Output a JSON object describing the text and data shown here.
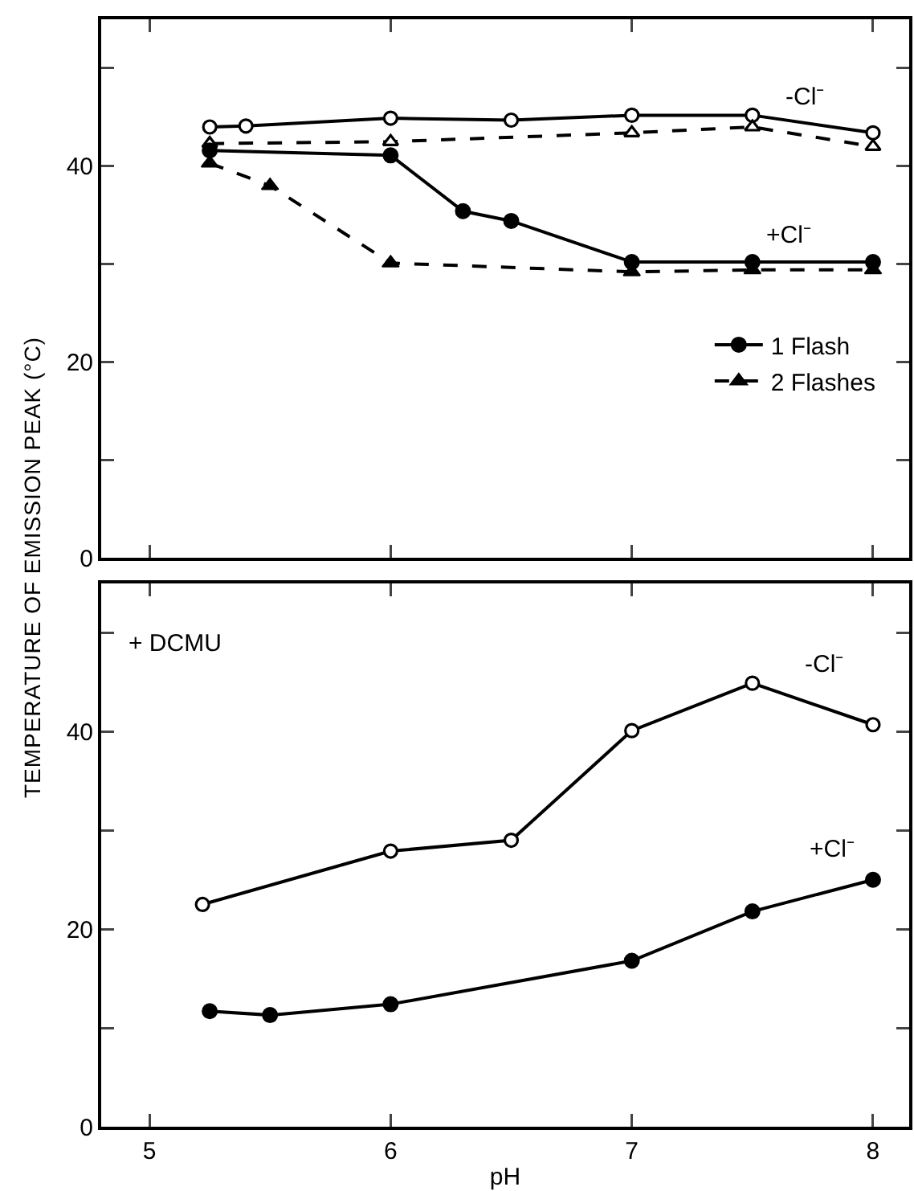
{
  "chart_data": [
    {
      "type": "line",
      "ylabel": "TEMPERATURE OF EMISSION PEAK (°C)",
      "xlim": [
        4.8,
        8.15
      ],
      "xticks": [
        5,
        6,
        7,
        8
      ],
      "ylim": [
        0,
        55
      ],
      "yticks": [
        {
          "value": 0,
          "label": "0"
        },
        {
          "value": 10,
          "label": null
        },
        {
          "value": 20,
          "label": "20"
        },
        {
          "value": 30,
          "label": null
        },
        {
          "value": 40,
          "label": "40"
        },
        {
          "value": 50,
          "label": null
        }
      ],
      "tick_labels": "y",
      "grid": false,
      "legend": "bottom right",
      "series": [
        {
          "color": "#000000",
          "marker": "circle-open",
          "line_style": "solid",
          "x": [
            5.25,
            5.4,
            6,
            6.5,
            7,
            7.5,
            8
          ],
          "values": [
            44.0,
            44.1,
            44.9,
            44.7,
            45.2,
            45.2,
            43.4
          ]
        },
        {
          "color": "#000000",
          "marker": "triangle-open",
          "line_style": "dashed",
          "x": [
            5.25,
            6,
            7,
            7.5,
            8
          ],
          "values": [
            42.3,
            42.5,
            43.4,
            44.0,
            42.0
          ]
        },
        {
          "name": "1 Flash",
          "color": "#000000",
          "marker": "circle",
          "line_style": "solid",
          "x": [
            5.25,
            6,
            6.3,
            6.5,
            7,
            7.5,
            8
          ],
          "values": [
            41.6,
            41.1,
            35.4,
            34.4,
            30.2,
            30.2,
            30.2
          ]
        },
        {
          "name": "2 Flashes",
          "color": "#000000",
          "marker": "triangle",
          "line_style": "dashed",
          "x": [
            5.25,
            5.5,
            6,
            7,
            7.5,
            8
          ],
          "values": [
            40.3,
            38.0,
            30.1,
            29.2,
            29.4,
            29.4
          ]
        }
      ],
      "annotations": [
        "-Cl⁻",
        "+Cl⁻"
      ]
    },
    {
      "type": "line",
      "xlabel": "pH",
      "xlim": [
        4.8,
        8.15
      ],
      "xticks": [
        5,
        6,
        7,
        8
      ],
      "ylim": [
        0,
        55
      ],
      "yticks": [
        {
          "value": 0,
          "label": "0"
        },
        {
          "value": 10,
          "label": null
        },
        {
          "value": 20,
          "label": "20"
        },
        {
          "value": 30,
          "label": null
        },
        {
          "value": 40,
          "label": "40"
        },
        {
          "value": 50,
          "label": null
        }
      ],
      "grid": false,
      "series": [
        {
          "color": "#000000",
          "marker": "circle-open",
          "line_style": "solid",
          "x": [
            5.22,
            6,
            6.5,
            7,
            7.5,
            8
          ],
          "values": [
            22.5,
            27.9,
            29.0,
            40.1,
            44.9,
            40.7
          ]
        },
        {
          "color": "#000000",
          "marker": "circle",
          "line_style": "solid",
          "x": [
            5.25,
            5.5,
            6,
            7,
            7.5,
            8
          ],
          "values": [
            11.7,
            11.3,
            12.4,
            16.8,
            21.8,
            25.0
          ]
        }
      ],
      "annotations": [
        "+ DCMU",
        "-Cl⁻",
        "+Cl⁻"
      ]
    }
  ]
}
